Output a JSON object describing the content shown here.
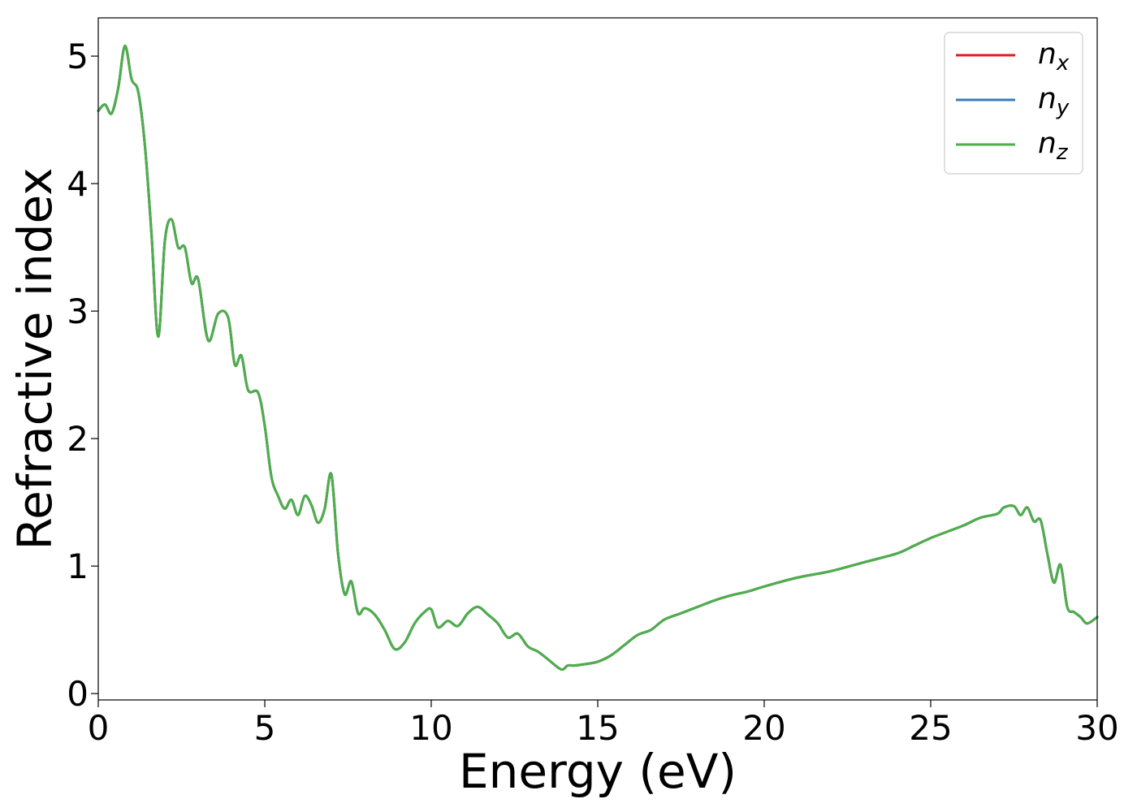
{
  "chart_data": {
    "type": "line",
    "title": "",
    "xlabel": "Energy (eV)",
    "ylabel": "Refractive index",
    "xlim": [
      0,
      30
    ],
    "ylim": [
      -0.05,
      5.3
    ],
    "xticks": [
      0,
      5,
      10,
      15,
      20,
      25,
      30
    ],
    "yticks": [
      0,
      1,
      2,
      3,
      4,
      5
    ],
    "grid": false,
    "legend_position": "top-right",
    "x": [
      0,
      0.2,
      0.4,
      0.6,
      0.8,
      1.0,
      1.2,
      1.4,
      1.6,
      1.8,
      2.0,
      2.2,
      2.4,
      2.6,
      2.8,
      3.0,
      3.3,
      3.6,
      3.9,
      4.1,
      4.3,
      4.5,
      4.8,
      5.0,
      5.2,
      5.4,
      5.6,
      5.8,
      6.0,
      6.2,
      6.4,
      6.6,
      6.8,
      7.0,
      7.2,
      7.4,
      7.6,
      7.8,
      8.0,
      8.3,
      8.6,
      8.9,
      9.2,
      9.5,
      9.8,
      10.0,
      10.2,
      10.5,
      10.8,
      11.1,
      11.4,
      11.7,
      12.0,
      12.3,
      12.6,
      12.9,
      13.2,
      13.5,
      13.9,
      14.1,
      14.3,
      14.6,
      15.0,
      15.4,
      15.8,
      16.2,
      16.6,
      17.0,
      17.5,
      18.0,
      18.5,
      19.0,
      19.5,
      20.0,
      21.0,
      22.0,
      23.0,
      24.0,
      24.5,
      25.0,
      25.5,
      26.0,
      26.5,
      27.0,
      27.2,
      27.5,
      27.7,
      27.9,
      28.1,
      28.3,
      28.5,
      28.7,
      28.9,
      29.1,
      29.3,
      29.5,
      29.7,
      30.0
    ],
    "series": [
      {
        "name": "n",
        "subscript": "x",
        "color": "#e41a1c",
        "values": [
          4.57,
          4.62,
          4.55,
          4.75,
          5.08,
          4.82,
          4.72,
          4.3,
          3.6,
          2.8,
          3.55,
          3.72,
          3.5,
          3.5,
          3.22,
          3.25,
          2.77,
          2.98,
          2.95,
          2.58,
          2.65,
          2.38,
          2.36,
          2.1,
          1.7,
          1.55,
          1.45,
          1.52,
          1.4,
          1.55,
          1.48,
          1.34,
          1.45,
          1.72,
          1.1,
          0.78,
          0.88,
          0.63,
          0.67,
          0.62,
          0.5,
          0.35,
          0.4,
          0.55,
          0.64,
          0.66,
          0.52,
          0.57,
          0.53,
          0.63,
          0.68,
          0.62,
          0.55,
          0.44,
          0.47,
          0.37,
          0.33,
          0.27,
          0.19,
          0.22,
          0.22,
          0.23,
          0.25,
          0.3,
          0.38,
          0.46,
          0.5,
          0.58,
          0.63,
          0.68,
          0.73,
          0.77,
          0.8,
          0.84,
          0.91,
          0.96,
          1.03,
          1.1,
          1.16,
          1.22,
          1.27,
          1.32,
          1.38,
          1.41,
          1.46,
          1.47,
          1.4,
          1.46,
          1.35,
          1.36,
          1.1,
          0.87,
          1.01,
          0.68,
          0.64,
          0.6,
          0.55,
          0.6
        ]
      },
      {
        "name": "n",
        "subscript": "y",
        "color": "#377eb8",
        "values": [
          4.57,
          4.62,
          4.55,
          4.75,
          5.08,
          4.82,
          4.72,
          4.3,
          3.6,
          2.8,
          3.55,
          3.72,
          3.5,
          3.5,
          3.22,
          3.25,
          2.77,
          2.98,
          2.95,
          2.58,
          2.65,
          2.38,
          2.36,
          2.1,
          1.7,
          1.55,
          1.45,
          1.52,
          1.4,
          1.55,
          1.48,
          1.34,
          1.45,
          1.72,
          1.1,
          0.78,
          0.88,
          0.63,
          0.67,
          0.62,
          0.5,
          0.35,
          0.4,
          0.55,
          0.64,
          0.66,
          0.52,
          0.57,
          0.53,
          0.63,
          0.68,
          0.62,
          0.55,
          0.44,
          0.47,
          0.37,
          0.33,
          0.27,
          0.19,
          0.22,
          0.22,
          0.23,
          0.25,
          0.3,
          0.38,
          0.46,
          0.5,
          0.58,
          0.63,
          0.68,
          0.73,
          0.77,
          0.8,
          0.84,
          0.91,
          0.96,
          1.03,
          1.1,
          1.16,
          1.22,
          1.27,
          1.32,
          1.38,
          1.41,
          1.46,
          1.47,
          1.4,
          1.46,
          1.35,
          1.36,
          1.1,
          0.87,
          1.01,
          0.68,
          0.64,
          0.6,
          0.55,
          0.6
        ]
      },
      {
        "name": "n",
        "subscript": "z",
        "color": "#4daf4a",
        "values": [
          4.57,
          4.62,
          4.55,
          4.75,
          5.08,
          4.82,
          4.72,
          4.3,
          3.6,
          2.8,
          3.55,
          3.72,
          3.5,
          3.5,
          3.22,
          3.25,
          2.77,
          2.98,
          2.95,
          2.58,
          2.65,
          2.38,
          2.36,
          2.1,
          1.7,
          1.55,
          1.45,
          1.52,
          1.4,
          1.55,
          1.48,
          1.34,
          1.45,
          1.72,
          1.1,
          0.78,
          0.88,
          0.63,
          0.67,
          0.62,
          0.5,
          0.35,
          0.4,
          0.55,
          0.64,
          0.66,
          0.52,
          0.57,
          0.53,
          0.63,
          0.68,
          0.62,
          0.55,
          0.44,
          0.47,
          0.37,
          0.33,
          0.27,
          0.19,
          0.22,
          0.22,
          0.23,
          0.25,
          0.3,
          0.38,
          0.46,
          0.5,
          0.58,
          0.63,
          0.68,
          0.73,
          0.77,
          0.8,
          0.84,
          0.91,
          0.96,
          1.03,
          1.1,
          1.16,
          1.22,
          1.27,
          1.32,
          1.38,
          1.41,
          1.46,
          1.47,
          1.4,
          1.46,
          1.35,
          1.36,
          1.1,
          0.87,
          1.01,
          0.68,
          0.64,
          0.6,
          0.55,
          0.6
        ]
      }
    ]
  }
}
